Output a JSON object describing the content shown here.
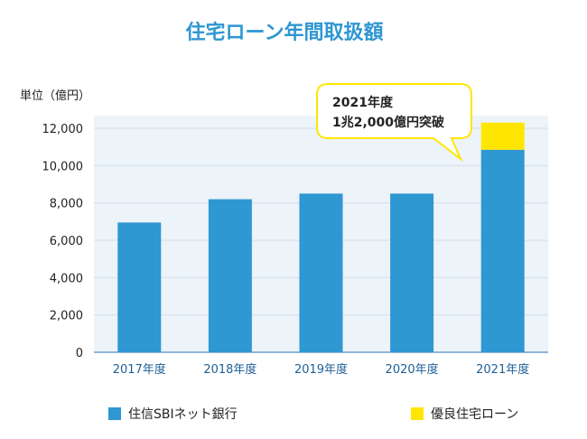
{
  "chart_data": {
    "type": "bar",
    "stacked": true,
    "title": "住宅ローン年間取扱額",
    "unit_label": "単位（億円）",
    "categories": [
      "2017年度",
      "2018年度",
      "2019年度",
      "2020年度",
      "2021年度"
    ],
    "series": [
      {
        "name": "住信SBIネット銀行",
        "color": "#2f97d2",
        "values": [
          6950,
          8200,
          8500,
          8500,
          10850
        ]
      },
      {
        "name": "優良住宅ローン",
        "color": "#ffe600",
        "values": [
          0,
          0,
          0,
          0,
          1450
        ]
      }
    ],
    "ylim": [
      0,
      12000
    ],
    "yticks": [
      0,
      2000,
      4000,
      6000,
      8000,
      10000,
      12000
    ],
    "grid": true,
    "annotation": {
      "category": "2021年度",
      "lines": [
        "2021年度",
        "1兆2,000億円突破"
      ]
    },
    "legend_position": "bottom"
  },
  "colors": {
    "title": "#2f97d2",
    "plot_bg": "#ecf3f9",
    "grid": "#d2dfec",
    "callout_border": "#ffe600"
  }
}
